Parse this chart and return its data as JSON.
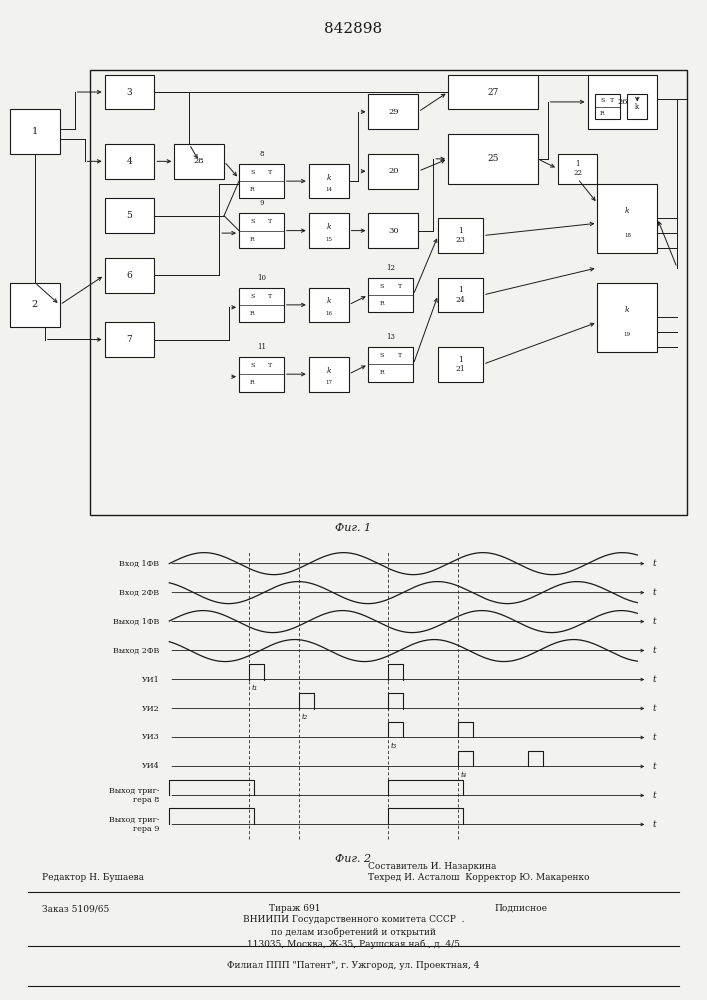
{
  "title": "842898",
  "fig1_caption": "Фиг. 1",
  "fig2_caption": "Фиг. 2",
  "bg_color": "#f2f2ee",
  "line_color": "#1a1a1a",
  "waveform_labels": [
    "Вход 1ФВ",
    "Вход 2ФВ",
    "Выход 1ФВ",
    "Выход 2ФВ",
    "УИ1",
    "УИ2",
    "УИ3",
    "УИ4",
    "Выход триг-\nгера 8",
    "Выход триг-\nгера 9"
  ],
  "bottom_text_line1": "Составитель И. Назаркина",
  "bottom_text_line2a": "Редактор Н. Бушаева",
  "bottom_text_line2b": "Техред И. Асталош  Корректор Ю. Макаренко",
  "bottom_text_line3a": "Заказ 5109/65",
  "bottom_text_line3b": "Тираж 691",
  "bottom_text_line3c": "Подписное",
  "bottom_text_line4": "ВНИИПИ Государственного комитета СССР  .",
  "bottom_text_line5": "по делам изобретений и открытий",
  "bottom_text_line6": "113035, Москва, Ж-35, Раушская наб., д. 4/5",
  "bottom_text_line7": "Филиал ППП \"Патент\", г. Ужгород, ул. Проектная, 4"
}
